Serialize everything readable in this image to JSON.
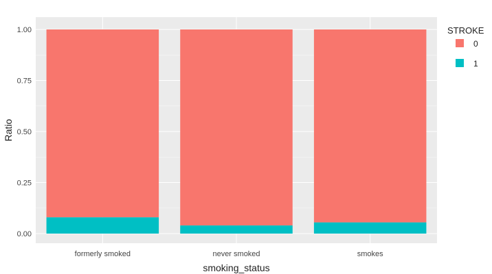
{
  "chart_data": {
    "type": "bar",
    "stacked": true,
    "xlabel": "smoking_status",
    "ylabel": "Ratio",
    "categories": [
      "formerly smoked",
      "never smoked",
      "smokes"
    ],
    "ylim": [
      0,
      1
    ],
    "yticks": [
      "0.00",
      "0.25",
      "0.50",
      "0.75",
      "1.00"
    ],
    "ytick_values": [
      0,
      0.25,
      0.5,
      0.75,
      1.0
    ],
    "grid": true,
    "legend": {
      "title": "STROKE",
      "position": "right"
    },
    "series": [
      {
        "name": "1",
        "color": "#00BFC4",
        "values": [
          0.08,
          0.04,
          0.055
        ]
      },
      {
        "name": "0",
        "color": "#F8766D",
        "values": [
          0.92,
          0.96,
          0.945
        ]
      }
    ],
    "background": "#EBEBEB",
    "gridcolor": "#FFFFFF"
  }
}
